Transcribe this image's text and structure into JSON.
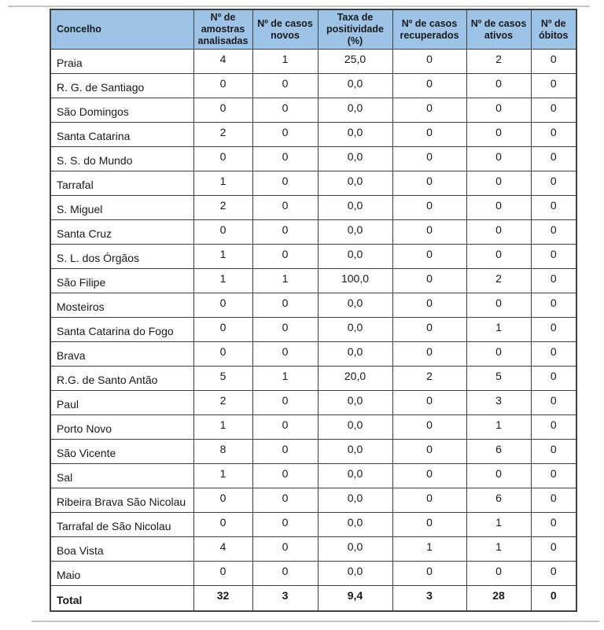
{
  "table": {
    "columns": [
      "Concelho",
      "Nº de amostras analisadas",
      "Nº de casos novos",
      "Taxa de positividade (%)",
      "Nº de casos recuperados",
      "Nº de casos ativos",
      "Nº de óbitos"
    ],
    "rows": [
      [
        "Praia",
        "4",
        "1",
        "25,0",
        "0",
        "2",
        "0"
      ],
      [
        "R. G. de Santiago",
        "0",
        "0",
        "0,0",
        "0",
        "0",
        "0"
      ],
      [
        "São Domingos",
        "0",
        "0",
        "0,0",
        "0",
        "0",
        "0"
      ],
      [
        "Santa Catarina",
        "2",
        "0",
        "0,0",
        "0",
        "0",
        "0"
      ],
      [
        "S. S. do Mundo",
        "0",
        "0",
        "0,0",
        "0",
        "0",
        "0"
      ],
      [
        "Tarrafal",
        "1",
        "0",
        "0,0",
        "0",
        "0",
        "0"
      ],
      [
        "S. Miguel",
        "2",
        "0",
        "0,0",
        "0",
        "0",
        "0"
      ],
      [
        "Santa Cruz",
        "0",
        "0",
        "0,0",
        "0",
        "0",
        "0"
      ],
      [
        "S. L. dos Órgãos",
        "1",
        "0",
        "0,0",
        "0",
        "0",
        "0"
      ],
      [
        "São Filipe",
        "1",
        "1",
        "100,0",
        "0",
        "2",
        "0"
      ],
      [
        "Mosteiros",
        "0",
        "0",
        "0,0",
        "0",
        "0",
        "0"
      ],
      [
        "Santa Catarina do Fogo",
        "0",
        "0",
        "0,0",
        "0",
        "1",
        "0"
      ],
      [
        "Brava",
        "0",
        "0",
        "0,0",
        "0",
        "0",
        "0"
      ],
      [
        "R.G. de Santo Antão",
        "5",
        "1",
        "20,0",
        "2",
        "5",
        "0"
      ],
      [
        "Paul",
        "2",
        "0",
        "0,0",
        "0",
        "3",
        "0"
      ],
      [
        "Porto Novo",
        "1",
        "0",
        "0,0",
        "0",
        "1",
        "0"
      ],
      [
        "São Vicente",
        "8",
        "0",
        "0,0",
        "0",
        "6",
        "0"
      ],
      [
        "Sal",
        "1",
        "0",
        "0,0",
        "0",
        "0",
        "0"
      ],
      [
        "Ribeira Brava São Nicolau",
        "0",
        "0",
        "0,0",
        "0",
        "6",
        "0"
      ],
      [
        "Tarrafal de São Nicolau",
        "0",
        "0",
        "0,0",
        "0",
        "1",
        "0"
      ],
      [
        "Boa Vista",
        "4",
        "0",
        "0,0",
        "1",
        "1",
        "0"
      ],
      [
        "Maio",
        "0",
        "0",
        "0,0",
        "0",
        "0",
        "0"
      ]
    ],
    "total_row": [
      "Total",
      "32",
      "3",
      "9,4",
      "3",
      "28",
      "0"
    ],
    "colors": {
      "header_bg": "#9DC3E6",
      "border": "#404040",
      "text": "#1a1a1a"
    }
  }
}
